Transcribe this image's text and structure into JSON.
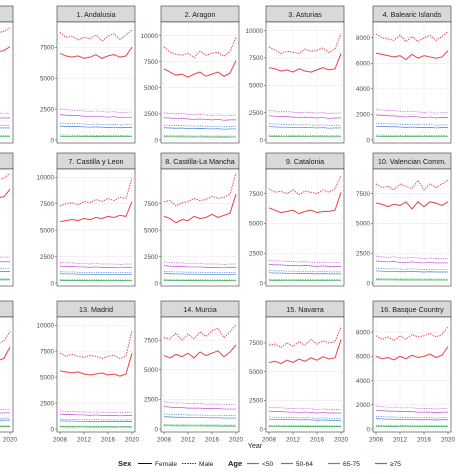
{
  "chart_data": {
    "type": "line",
    "facet_type": "small-multiples",
    "x": [
      2008,
      2009,
      2010,
      2011,
      2012,
      2013,
      2014,
      2015,
      2016,
      2017,
      2018,
      2019,
      2020
    ],
    "x_ticks": [
      "2008",
      "2012",
      "2016",
      "2020"
    ],
    "xlabel": "Year",
    "grid": true,
    "legend_position": "bottom",
    "legend": {
      "sex_title": "Sex",
      "sex_items": [
        {
          "label": "Female",
          "dash": "solid"
        },
        {
          "label": "Male",
          "dash": "dotted"
        }
      ],
      "age_title": "Age",
      "age_items": [
        {
          "label": "<50",
          "color": "#2fa84f"
        },
        {
          "label": "50-64",
          "color": "#3f7fd8"
        },
        {
          "label": "65-75",
          "color": "#c24fd0"
        },
        {
          "label": "≥75",
          "color": "#e8414a"
        }
      ]
    },
    "panels": [
      {
        "title": "",
        "yticks": [],
        "ylim": [
          0,
          9000
        ],
        "series": {
          "female": [
            3000,
            6900,
            6800,
            6900,
            6700,
            6600,
            6800,
            6700,
            6900,
            7100,
            6900,
            7000,
            7300
          ],
          "male": [
            7200,
            8400,
            8200,
            8300,
            8100,
            8200,
            8400,
            8100,
            8300,
            8600,
            8400,
            8500,
            8800
          ],
          "mid": [
            2300,
            2300,
            2300,
            2200,
            2200,
            2200,
            2200,
            2200,
            2100,
            2200,
            2100,
            2100,
            2100
          ]
        }
      },
      {
        "title": "1. Andalusia",
        "yticks": [
          "0",
          "2500",
          "5000",
          "7500"
        ],
        "ylim": [
          0,
          9300
        ],
        "series": {
          "female": [
            7000,
            6800,
            6700,
            6800,
            6600,
            6700,
            6900,
            6600,
            6800,
            6900,
            6700,
            6800,
            7500
          ],
          "male": [
            8700,
            8300,
            8400,
            8100,
            8300,
            8200,
            8500,
            8000,
            8400,
            8600,
            8100,
            8500,
            8900
          ],
          "mid": [
            2500,
            2450,
            2400,
            2400,
            2350,
            2300,
            2350,
            2300,
            2250,
            2300,
            2200,
            2250,
            2250
          ]
        }
      },
      {
        "title": "2. Aragon",
        "yticks": [
          "0",
          "2500",
          "5000",
          "7500",
          "10000"
        ],
        "ylim": [
          0,
          11000
        ],
        "series": {
          "female": [
            6800,
            6500,
            6200,
            6300,
            6000,
            6300,
            6500,
            6100,
            6300,
            6500,
            6100,
            6400,
            7600
          ],
          "male": [
            8900,
            8400,
            8200,
            8100,
            8300,
            7900,
            8500,
            8100,
            8300,
            8400,
            8000,
            8500,
            9800
          ],
          "mid": [
            2600,
            2550,
            2500,
            2550,
            2450,
            2400,
            2450,
            2400,
            2350,
            2400,
            2300,
            2350,
            2350
          ]
        }
      },
      {
        "title": "3. Asturias",
        "yticks": [
          "0",
          "2500",
          "5000",
          "7500",
          "10000"
        ],
        "ylim": [
          0,
          10500
        ],
        "series": {
          "female": [
            6600,
            6500,
            6300,
            6400,
            6200,
            6500,
            6300,
            6200,
            6400,
            6600,
            6400,
            6500,
            7900
          ],
          "male": [
            8500,
            8200,
            7900,
            8100,
            8000,
            7900,
            8300,
            8100,
            8200,
            8400,
            8000,
            8300,
            9700
          ],
          "mid": [
            2700,
            2650,
            2600,
            2600,
            2550,
            2500,
            2550,
            2500,
            2450,
            2500,
            2400,
            2450,
            2450
          ]
        }
      },
      {
        "title": "4. Balearic Islands",
        "yticks": [
          "0",
          "2000",
          "4000",
          "6000",
          "8000"
        ],
        "ylim": [
          0,
          9000
        ],
        "series": {
          "female": [
            6800,
            6700,
            6600,
            6500,
            6600,
            6300,
            6700,
            6400,
            6600,
            6500,
            6400,
            6500,
            7000
          ],
          "male": [
            8300,
            8000,
            7900,
            7800,
            8200,
            7700,
            8100,
            7700,
            8000,
            8200,
            7800,
            8100,
            8500
          ],
          "mid": [
            2400,
            2350,
            2300,
            2300,
            2250,
            2200,
            2250,
            2200,
            2150,
            2200,
            2100,
            2150,
            2150
          ]
        }
      },
      {
        "title": "",
        "yticks": [],
        "ylim": [
          0,
          9000
        ],
        "series": {
          "female": [
            3000,
            6900,
            6800,
            6900,
            6700,
            6600,
            6800,
            6700,
            6900,
            7100,
            6900,
            7000,
            7600
          ],
          "male": [
            7200,
            8400,
            8200,
            8300,
            8100,
            8200,
            8400,
            8100,
            8300,
            8600,
            8400,
            8500,
            8900
          ],
          "mid": [
            2300,
            2300,
            2300,
            2200,
            2200,
            2200,
            2200,
            2200,
            2100,
            2200,
            2100,
            2100,
            2100
          ]
        }
      },
      {
        "title": "7. Castilla y Leon",
        "yticks": [
          "0",
          "2500",
          "5000",
          "7500",
          "10000"
        ],
        "ylim": [
          0,
          10500
        ],
        "series": {
          "female": [
            5800,
            5900,
            6000,
            5900,
            6100,
            6000,
            6200,
            6100,
            6300,
            6200,
            6400,
            6300,
            7700
          ],
          "male": [
            7300,
            7500,
            7600,
            7400,
            7700,
            7600,
            7900,
            7700,
            8000,
            7800,
            8100,
            8000,
            9900
          ],
          "mid": [
            1950,
            1900,
            1900,
            1850,
            1850,
            1800,
            1850,
            1800,
            1800,
            1800,
            1750,
            1800,
            1800
          ]
        }
      },
      {
        "title": "8. Castilla-La Mancha",
        "yticks": [
          "0",
          "2500",
          "5000",
          "7500"
        ],
        "ylim": [
          0,
          10500
        ],
        "series": {
          "female": [
            6300,
            6100,
            5700,
            6000,
            5900,
            6300,
            6100,
            6200,
            6500,
            6200,
            6400,
            6600,
            8400
          ],
          "male": [
            7700,
            7800,
            7300,
            7600,
            7700,
            8000,
            7800,
            7900,
            8200,
            8000,
            8100,
            8400,
            10400
          ],
          "mid": [
            2000,
            1950,
            1900,
            1900,
            1850,
            1850,
            1850,
            1800,
            1800,
            1800,
            1750,
            1800,
            1800
          ]
        }
      },
      {
        "title": "9. Catalonia",
        "yticks": [
          "0",
          "2500",
          "5000",
          "7500"
        ],
        "ylim": [
          0,
          9300
        ],
        "series": {
          "female": [
            6300,
            6100,
            5900,
            6000,
            6100,
            5800,
            6000,
            6100,
            5900,
            6000,
            6000,
            6100,
            7600
          ],
          "male": [
            7900,
            7600,
            7700,
            7500,
            7800,
            7400,
            7700,
            7600,
            7500,
            7800,
            7600,
            7900,
            9000
          ],
          "mid": [
            1900,
            1850,
            1850,
            1800,
            1800,
            1750,
            1800,
            1750,
            1700,
            1750,
            1700,
            1700,
            1700
          ]
        }
      },
      {
        "title": "10. Valencian Comm.",
        "yticks": [
          "0",
          "2500",
          "5000",
          "7500"
        ],
        "ylim": [
          0,
          9300
        ],
        "series": {
          "female": [
            6700,
            6600,
            6400,
            6600,
            6500,
            6800,
            6200,
            6800,
            6400,
            6800,
            6700,
            6500,
            6800
          ],
          "male": [
            8300,
            8000,
            8100,
            7800,
            8300,
            8100,
            7900,
            8600,
            7800,
            8300,
            8000,
            8300,
            8600
          ],
          "mid": [
            2250,
            2200,
            2150,
            2200,
            2100,
            2100,
            2150,
            2100,
            2050,
            2100,
            2050,
            2050,
            2050
          ]
        }
      },
      {
        "title": "",
        "yticks": [],
        "ylim": [
          0,
          10500
        ],
        "series": {
          "female": [
            3000,
            6300,
            6400,
            6200,
            6500,
            6300,
            6600,
            6400,
            6500,
            6700,
            6600,
            6800,
            7900
          ],
          "male": [
            7000,
            7900,
            8100,
            7800,
            8200,
            7900,
            8300,
            8000,
            8100,
            8400,
            8200,
            8500,
            9400
          ],
          "mid": [
            2100,
            2050,
            2000,
            2000,
            1950,
            1950,
            1950,
            1900,
            1900,
            1900,
            1850,
            1900,
            1900
          ]
        }
      },
      {
        "title": "13. Madrid",
        "yticks": [
          "0",
          "2500",
          "5000",
          "7500",
          "10000"
        ],
        "ylim": [
          0,
          10500
        ],
        "series": {
          "female": [
            5600,
            5500,
            5400,
            5500,
            5300,
            5200,
            5300,
            5400,
            5200,
            5300,
            5100,
            5300,
            7300
          ],
          "male": [
            7300,
            7000,
            7200,
            7000,
            6900,
            7100,
            7000,
            6800,
            7000,
            7100,
            6800,
            7000,
            9500
          ],
          "mid": [
            1750,
            1700,
            1700,
            1650,
            1650,
            1600,
            1650,
            1600,
            1600,
            1600,
            1550,
            1600,
            1600
          ]
        }
      },
      {
        "title": "14. Murcia",
        "yticks": [
          "0",
          "2500",
          "5000",
          "7500"
        ],
        "ylim": [
          0,
          9200
        ],
        "series": {
          "female": [
            6200,
            6000,
            6300,
            6100,
            6400,
            6000,
            6500,
            6200,
            6400,
            6600,
            6100,
            6500,
            7100
          ],
          "male": [
            7700,
            7600,
            8100,
            7500,
            8000,
            7600,
            8200,
            7800,
            8300,
            8500,
            7700,
            8200,
            8800
          ],
          "mid": [
            2300,
            2250,
            2200,
            2200,
            2150,
            2150,
            2150,
            2100,
            2100,
            2100,
            2050,
            2050,
            2050
          ]
        }
      },
      {
        "title": "15. Navarra",
        "yticks": [
          "0",
          "2500",
          "5000",
          "7500"
        ],
        "ylim": [
          0,
          9500
        ],
        "series": {
          "female": [
            5800,
            5900,
            5700,
            6000,
            5800,
            6100,
            5900,
            6200,
            6000,
            6300,
            6100,
            6200,
            7800
          ],
          "male": [
            7300,
            7400,
            7100,
            7500,
            7200,
            7600,
            7300,
            7800,
            7400,
            7700,
            7500,
            7600,
            8900
          ],
          "mid": [
            1900,
            1850,
            1850,
            1800,
            1800,
            1750,
            1800,
            1750,
            1700,
            1750,
            1700,
            1700,
            1700
          ]
        }
      },
      {
        "title": "16. Basque Country",
        "yticks": [
          "0",
          "2000",
          "4000",
          "6000",
          "8000"
        ],
        "ylim": [
          0,
          9000
        ],
        "series": {
          "female": [
            6000,
            5800,
            5900,
            5700,
            6000,
            5800,
            6100,
            5900,
            6000,
            6200,
            5900,
            6100,
            6800
          ],
          "male": [
            7700,
            7400,
            7600,
            7300,
            7700,
            7400,
            7800,
            7600,
            7700,
            7900,
            7600,
            7800,
            8500
          ],
          "mid": [
            1900,
            1850,
            1800,
            1800,
            1750,
            1750,
            1750,
            1700,
            1700,
            1700,
            1650,
            1700,
            1700
          ]
        }
      }
    ]
  }
}
